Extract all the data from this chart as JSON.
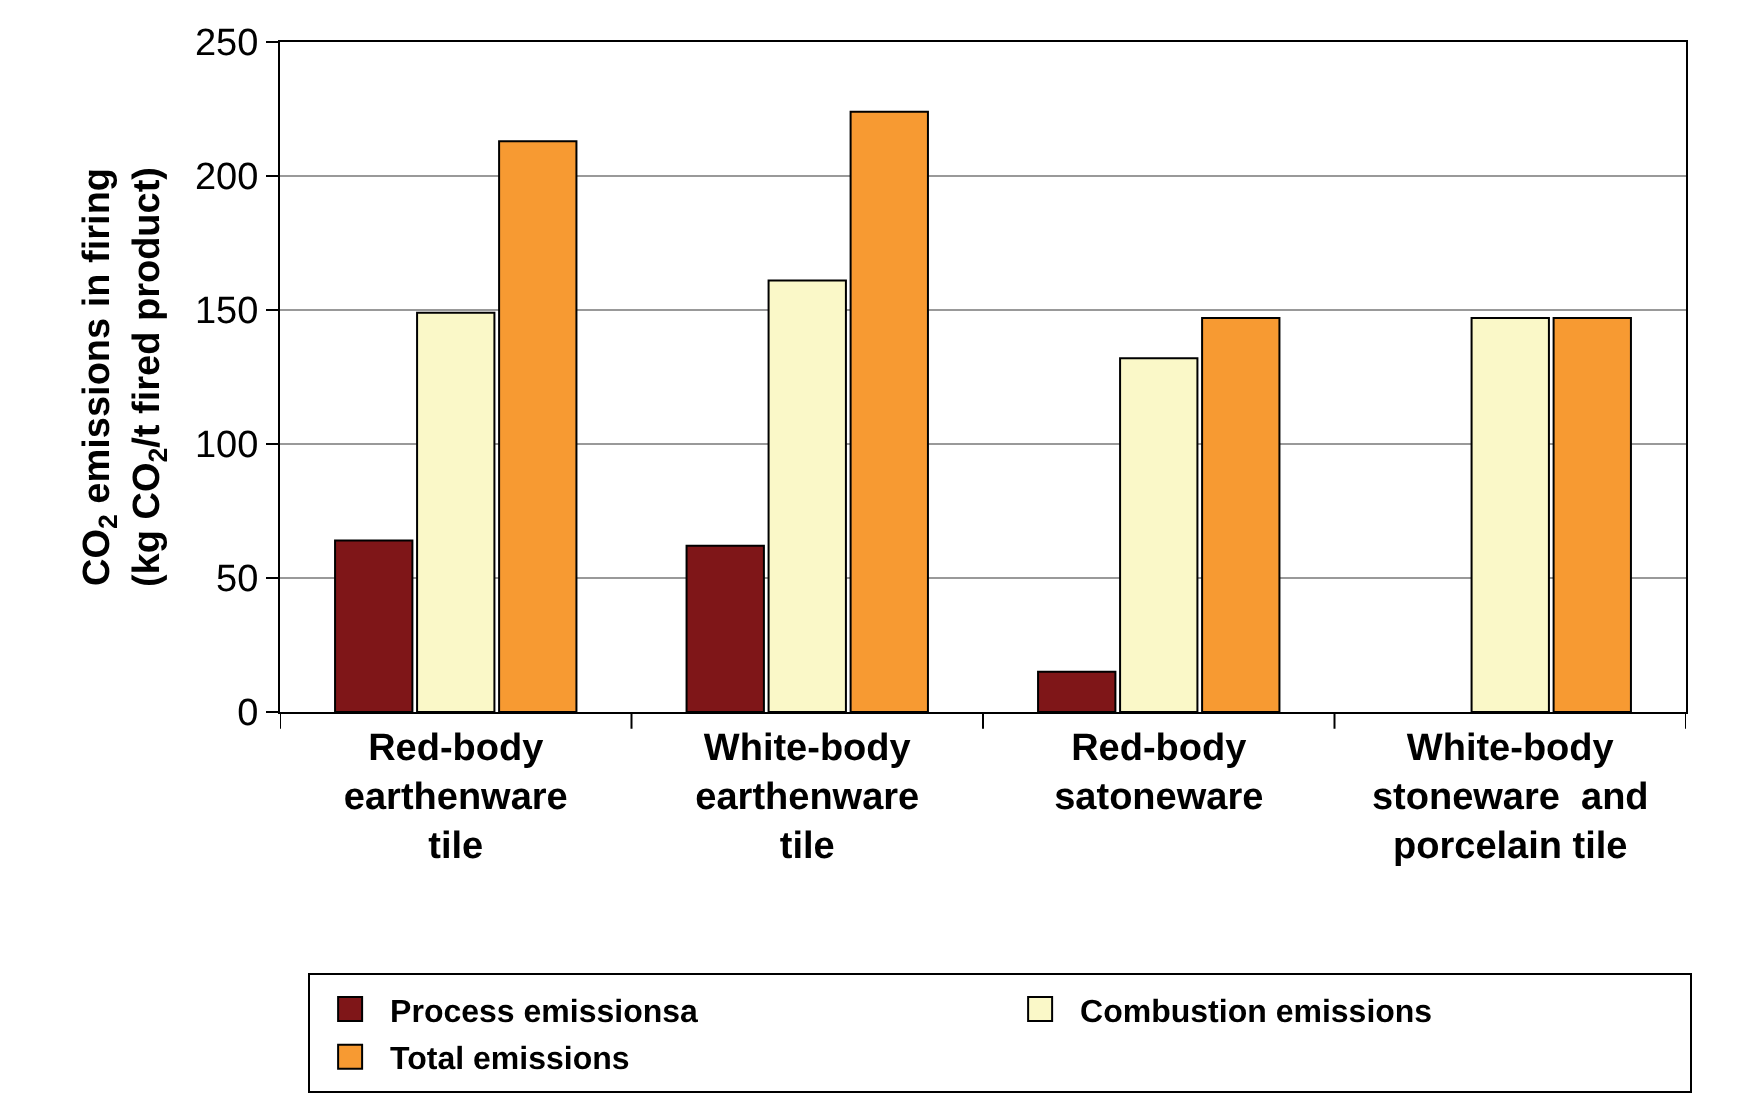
{
  "chart_data": {
    "type": "bar",
    "ylabel": "CO$_{2}$ emissions in firing\n(kg CO$_{2}$/t fired product)",
    "categories": [
      "Red-body\nearthenware\ntile",
      "White-body\nearthenware\ntile",
      "Red-body\nsatoneware",
      "White-body\nstoneware  and\nporcelain tile"
    ],
    "series": [
      {
        "name": "Process emissionsa",
        "color": "#7f1618",
        "values": [
          64,
          62,
          15,
          null
        ]
      },
      {
        "name": "Combustion emissions",
        "color": "#faf8c8",
        "values": [
          149,
          161,
          132,
          147
        ]
      },
      {
        "name": "Total emissions",
        "color": "#f79a32",
        "values": [
          213,
          224,
          147,
          147
        ]
      }
    ],
    "ylim": [
      0,
      250
    ],
    "yticks": [
      0,
      50,
      100,
      150,
      200,
      250
    ],
    "grid": "y",
    "legend": "bottom"
  }
}
